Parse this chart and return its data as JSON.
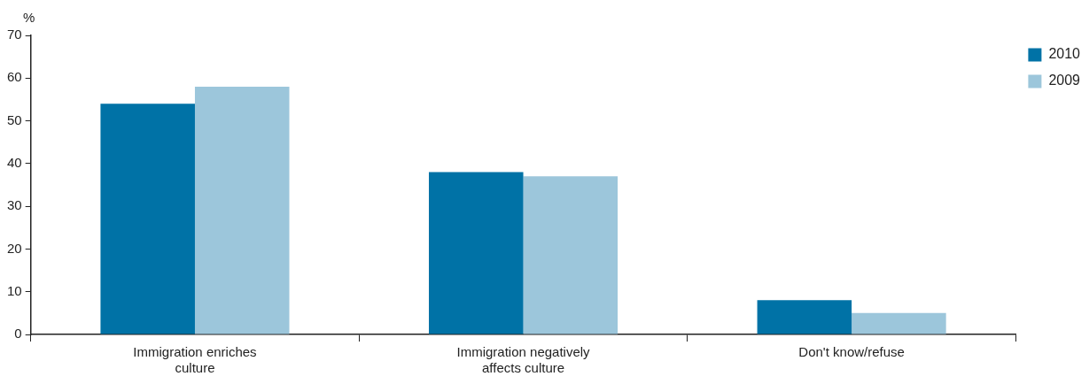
{
  "chart_data": {
    "type": "bar",
    "ylabel": "%",
    "categories": [
      "Immigration enriches culture",
      "Immigration negatively affects culture",
      "Don't know/refuse"
    ],
    "series": [
      {
        "name": "2010",
        "color": "#0072a6",
        "values": [
          54,
          38,
          8
        ]
      },
      {
        "name": "2009",
        "color": "#9cc6db",
        "values": [
          58,
          37,
          5
        ]
      }
    ],
    "ylim": [
      0,
      70
    ],
    "yticks": [
      0,
      10,
      20,
      30,
      40,
      50,
      60,
      70
    ],
    "legend": "right"
  }
}
